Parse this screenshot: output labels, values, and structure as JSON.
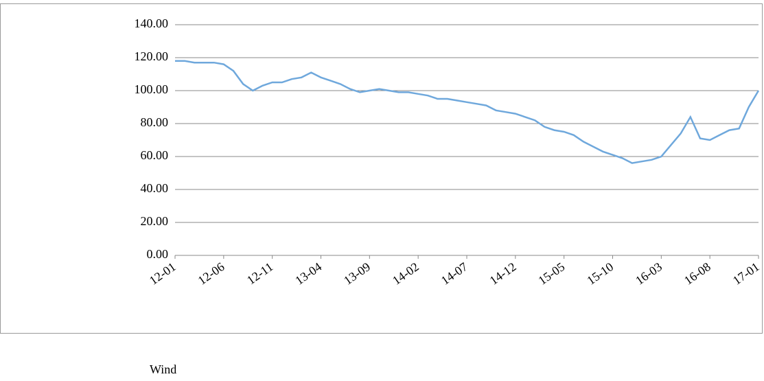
{
  "chart_data": {
    "type": "line",
    "categories": [
      "12-01",
      null,
      null,
      null,
      null,
      "12-06",
      null,
      null,
      null,
      null,
      "12-11",
      null,
      null,
      null,
      null,
      "13-04",
      null,
      null,
      null,
      null,
      "13-09",
      null,
      null,
      null,
      null,
      "14-02",
      null,
      null,
      null,
      null,
      "14-07",
      null,
      null,
      null,
      null,
      "14-12",
      null,
      null,
      null,
      null,
      "15-05",
      null,
      null,
      null,
      null,
      "15-10",
      null,
      null,
      null,
      null,
      "16-03",
      null,
      null,
      null,
      null,
      "16-08",
      null,
      null,
      null,
      null,
      "17-01"
    ],
    "values": [
      118,
      118,
      117,
      117,
      117,
      116,
      112,
      104,
      100,
      103,
      105,
      105,
      107,
      108,
      111,
      108,
      106,
      104,
      101,
      99,
      100,
      101,
      100,
      99,
      99,
      98,
      97,
      95,
      95,
      94,
      93,
      92,
      91,
      88,
      87,
      86,
      84,
      82,
      78,
      76,
      75,
      73,
      69,
      66,
      63,
      61,
      59,
      56,
      57,
      58,
      60,
      67,
      74,
      84,
      71,
      70,
      73,
      76,
      77,
      90,
      100
    ],
    "color": "#6fa8dc",
    "ylim": [
      0,
      140
    ],
    "yticks": [
      {
        "value": 0,
        "label": "0.00"
      },
      {
        "value": 20,
        "label": "20.00"
      },
      {
        "value": 40,
        "label": "40.00"
      },
      {
        "value": 60,
        "label": "60.00"
      },
      {
        "value": 80,
        "label": "80.00"
      },
      {
        "value": 100,
        "label": "100.00"
      },
      {
        "value": 120,
        "label": "120.00"
      },
      {
        "value": 140,
        "label": "140.00"
      }
    ],
    "grid": true,
    "source": "Wind"
  }
}
